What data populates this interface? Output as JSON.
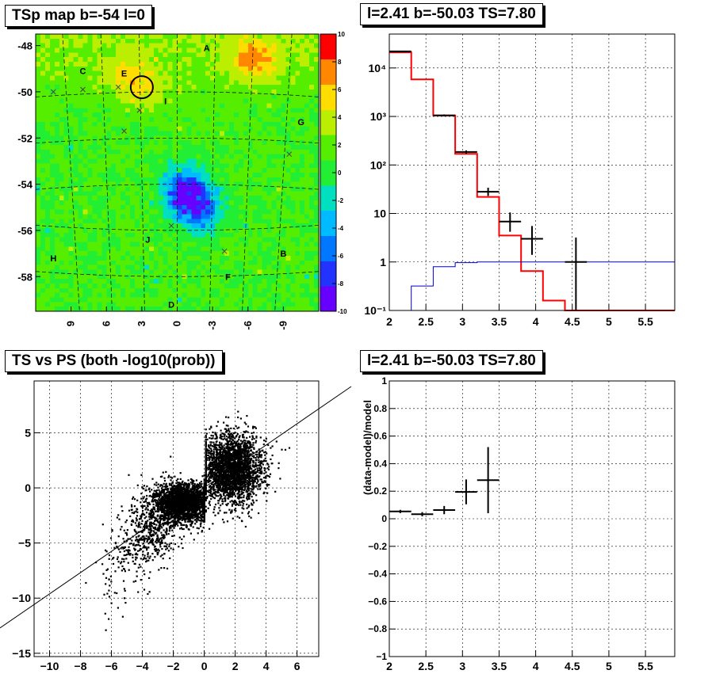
{
  "map_panel": {
    "title": "TSp map b=-54 l=0",
    "y_ticks": [
      "-48",
      "-50",
      "-52",
      "-54",
      "-56",
      "-58"
    ],
    "x_ticks": [
      "9",
      "6",
      "3",
      "0",
      "-3",
      "-6",
      "-9"
    ],
    "color_scale": {
      "min": -10,
      "max": 10,
      "tick_labels": [
        "10",
        "8",
        "6",
        "4",
        "2",
        "0",
        "-2",
        "-4",
        "-6",
        "-8",
        "-10"
      ],
      "colors": [
        "#6600ff",
        "#2233ff",
        "#0077ff",
        "#00bbff",
        "#00e0c0",
        "#22ee33",
        "#55ee00",
        "#bbee00",
        "#ffdd00",
        "#ff8800",
        "#ff0000"
      ]
    },
    "source_labels": [
      "A",
      "B",
      "C",
      "D",
      "E",
      "F",
      "G",
      "H",
      "I",
      "J"
    ]
  },
  "spectrum_panel": {
    "title": "l=2.41 b=-50.03 TS=7.80",
    "y_ticks": [
      "10⁴",
      "10³",
      "10²",
      "10",
      "1",
      "10⁻¹"
    ],
    "x_ticks": [
      "2",
      "2.5",
      "3",
      "3.5",
      "4",
      "4.5",
      "5",
      "5.5"
    ]
  },
  "scatter_panel": {
    "title": "TS vs PS (both -log10(prob))",
    "y_ticks": [
      "5",
      "0",
      "−5",
      "−10",
      "−15"
    ],
    "x_ticks": [
      "−10",
      "−8",
      "−6",
      "−4",
      "−2",
      "0",
      "2",
      "4",
      "6"
    ]
  },
  "residual_panel": {
    "title": "l=2.41 b=-50.03 TS=7.80",
    "ylabel": "(data-model)/model",
    "y_ticks": [
      "1",
      "0.8",
      "0.6",
      "0.4",
      "0.2",
      "0",
      "−0.2",
      "−0.4",
      "−0.6",
      "−0.8",
      "−1"
    ],
    "x_ticks": [
      "2",
      "2.5",
      "3",
      "3.5",
      "4",
      "4.5",
      "5",
      "5.5"
    ]
  },
  "chart_data": [
    {
      "type": "heatmap",
      "title": "TSp map b=-54 l=0",
      "x_range": [
        12,
        -12
      ],
      "y_range": [
        -59.5,
        -47.5
      ],
      "z_range": [
        -10,
        10
      ],
      "colorbar_ticks": [
        10,
        8,
        6,
        4,
        2,
        0,
        -2,
        -4,
        -6,
        -8,
        -10
      ],
      "hotspots": [
        {
          "l": 3.0,
          "b": -49.8,
          "value": 6
        },
        {
          "l": -6.5,
          "b": -48.6,
          "value": 8
        },
        {
          "l": 4.5,
          "b": -49.2,
          "value": 5
        }
      ],
      "coldspots": [
        {
          "l": -0.5,
          "b": -54.3,
          "value": -9
        },
        {
          "l": -2.0,
          "b": -55.0,
          "value": -8
        }
      ],
      "circle": {
        "l": 3.0,
        "b": -49.8
      },
      "sources": [
        {
          "label": "A",
          "l": -2.5,
          "b": -48.1
        },
        {
          "label": "B",
          "l": -9.0,
          "b": -57.0
        },
        {
          "label": "C",
          "l": 8.0,
          "b": -49.1
        },
        {
          "label": "D",
          "l": 0.5,
          "b": -59.2
        },
        {
          "label": "E",
          "l": 4.5,
          "b": -49.2
        },
        {
          "label": "F",
          "l": -4.3,
          "b": -58.0
        },
        {
          "label": "G",
          "l": -10.5,
          "b": -51.3
        },
        {
          "label": "H",
          "l": 10.5,
          "b": -57.2
        },
        {
          "label": "I",
          "l": 1.0,
          "b": -50.4
        },
        {
          "label": "J",
          "l": 2.5,
          "b": -56.4
        }
      ],
      "crosses": [
        {
          "l": 10.5,
          "b": -50.0
        },
        {
          "l": 8.0,
          "b": -49.9
        },
        {
          "l": 5.0,
          "b": -49.8
        },
        {
          "l": 3.2,
          "b": -50.8
        },
        {
          "l": 4.5,
          "b": -51.7
        },
        {
          "l": -4.0,
          "b": -56.9
        },
        {
          "l": -9.5,
          "b": -52.7
        },
        {
          "l": 0.5,
          "b": -55.8
        }
      ]
    },
    {
      "type": "line",
      "title": "l=2.41 b=-50.03 TS=7.80",
      "log_y": true,
      "xlim": [
        2,
        5.9
      ],
      "ylim": [
        0.1,
        50000
      ],
      "bin_edges": [
        2.0,
        2.3,
        2.6,
        2.9,
        3.2,
        3.5,
        3.8,
        4.1,
        4.4,
        5.9
      ],
      "series": [
        {
          "color": "#ff0000",
          "values": [
            21000,
            5800,
            1050,
            170,
            22,
            3.5,
            0.65,
            0.16,
            0.1
          ]
        },
        {
          "color": "#0000cc",
          "values": [
            0.1,
            0.32,
            0.8,
            0.97,
            1.0,
            1.0,
            1.0,
            1.0,
            1.0
          ]
        },
        {
          "color": "#000000",
          "points": [
            {
              "x": 2.15,
              "xerr": 0.15,
              "y": 22000,
              "ylo": 21500,
              "yhi": 22500
            },
            {
              "x": 2.75,
              "xerr": 0.15,
              "y": 1050,
              "ylo": 1000,
              "yhi": 1100
            },
            {
              "x": 3.05,
              "xerr": 0.15,
              "y": 185,
              "ylo": 170,
              "yhi": 200
            },
            {
              "x": 3.35,
              "xerr": 0.15,
              "y": 28,
              "ylo": 23,
              "yhi": 34
            },
            {
              "x": 3.65,
              "xerr": 0.15,
              "y": 6.8,
              "ylo": 4.2,
              "yhi": 10.5
            },
            {
              "x": 3.95,
              "xerr": 0.15,
              "y": 3.0,
              "ylo": 1.4,
              "yhi": 5.5
            },
            {
              "x": 4.55,
              "xerr": 0.15,
              "y": 1.0,
              "ylo": 0.1,
              "yhi": 3.2
            }
          ]
        }
      ]
    },
    {
      "type": "scatter",
      "title": "TS vs PS (both -log10(prob))",
      "xlim": [
        -11,
        7.4
      ],
      "ylim": [
        -15.3,
        9.7
      ],
      "line": {
        "slope": 1.0,
        "intercept": 0.5
      },
      "clusters": [
        {
          "cx": 1.7,
          "cy": 1.8,
          "sx": 1.0,
          "sy": 1.6,
          "n": 2600
        },
        {
          "cx": -1.4,
          "cy": -1.3,
          "sx": 0.85,
          "sy": 0.9,
          "n": 2200
        },
        {
          "cx": -3.5,
          "cy": -3.6,
          "sx": 1.1,
          "sy": 1.8,
          "n": 650
        },
        {
          "cx": -5.8,
          "cy": -8.0,
          "sx": 0.6,
          "sy": 1.9,
          "n": 45
        }
      ]
    },
    {
      "type": "scatter",
      "title": "l=2.41 b=-50.03 TS=7.80",
      "ylabel": "(data-model)/model",
      "xlim": [
        2,
        5.9
      ],
      "ylim": [
        -1,
        1
      ],
      "points": [
        {
          "x": 2.15,
          "xerr": 0.15,
          "y": 0.053,
          "yerr": 0.012
        },
        {
          "x": 2.45,
          "xerr": 0.15,
          "y": 0.033,
          "yerr": 0.015
        },
        {
          "x": 2.75,
          "xerr": 0.15,
          "y": 0.063,
          "yerr": 0.03
        },
        {
          "x": 3.05,
          "xerr": 0.15,
          "y": 0.195,
          "yerr": 0.09
        },
        {
          "x": 3.35,
          "xerr": 0.15,
          "y": 0.28,
          "yerr": 0.24
        }
      ]
    }
  ]
}
